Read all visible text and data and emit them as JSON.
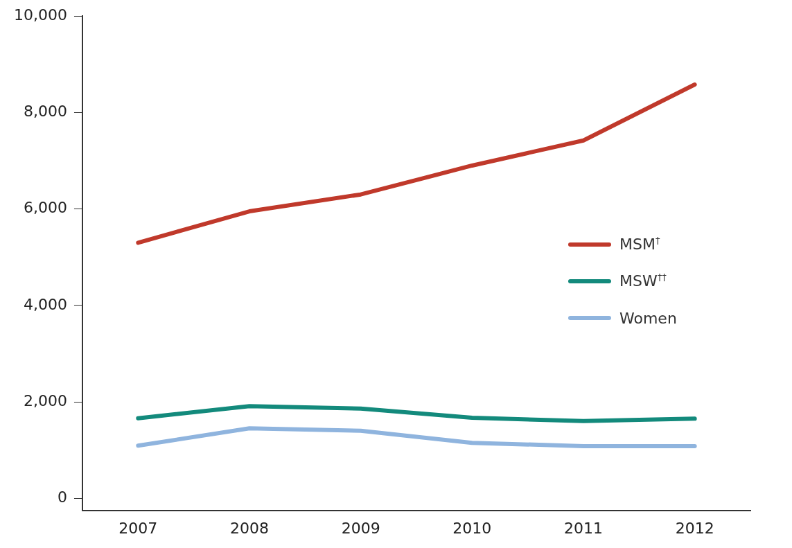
{
  "chart_data": {
    "type": "line",
    "categories": [
      "2007",
      "2008",
      "2009",
      "2010",
      "2011",
      "2012"
    ],
    "ylim": [
      -250,
      10000
    ],
    "yticks": [
      {
        "value": 0,
        "label": "0"
      },
      {
        "value": 2000,
        "label": "2,000"
      },
      {
        "value": 4000,
        "label": "4,000"
      },
      {
        "value": 6000,
        "label": "6,000"
      },
      {
        "value": 8000,
        "label": "8,000"
      },
      {
        "value": 10000,
        "label": "10,000"
      }
    ],
    "grid": false,
    "legend": "right",
    "marker": "none",
    "series": [
      {
        "name": "MSM$^{†}$",
        "color": "#c0392b",
        "values": [
          5300,
          5950,
          6300,
          6900,
          7420,
          8580
        ]
      },
      {
        "name": "MSW$^{††}$",
        "color": "#138a7c",
        "values": [
          1660,
          1910,
          1860,
          1670,
          1600,
          1650
        ]
      },
      {
        "name": "Women",
        "color": "#8fb4de",
        "values": [
          1090,
          1450,
          1400,
          1150,
          1080,
          1080
        ]
      }
    ]
  }
}
